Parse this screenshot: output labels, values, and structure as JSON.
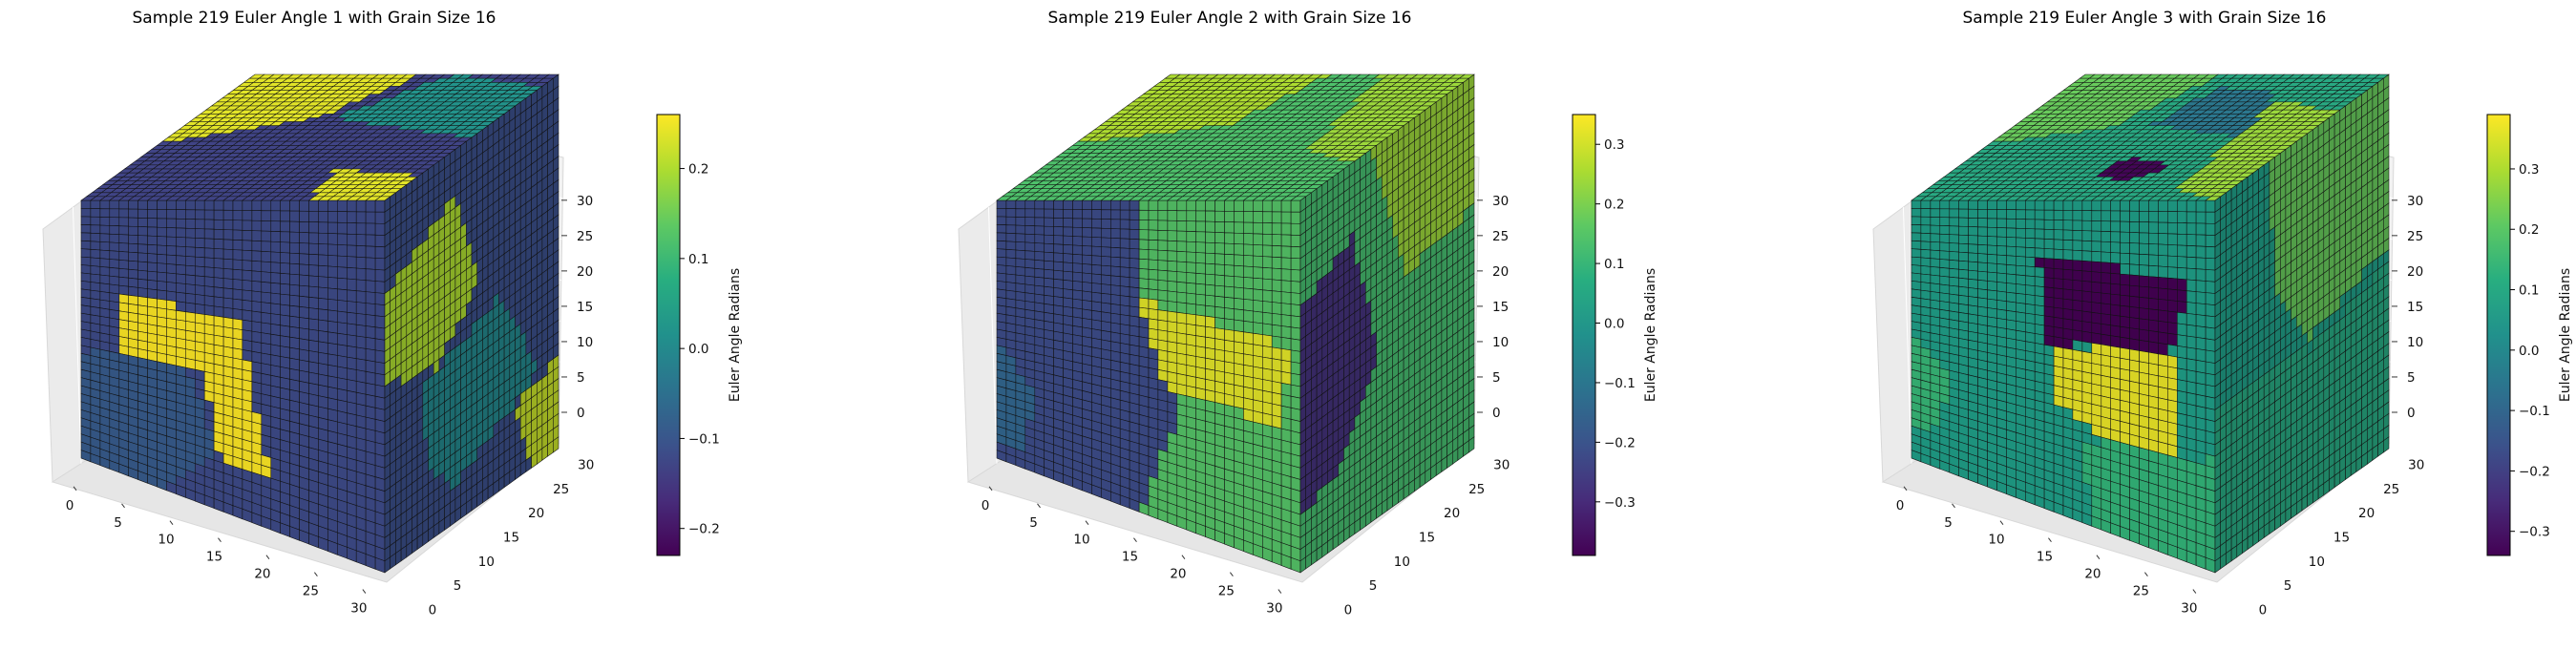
{
  "chart_data": [
    {
      "type": "voxel-3d",
      "title": "Sample 219 Euler Angle 1 with Grain Size 16",
      "xticks": [
        "0",
        "5",
        "10",
        "15",
        "20",
        "25",
        "30"
      ],
      "yticks": [
        "0",
        "5",
        "10",
        "15",
        "20",
        "25",
        "30"
      ],
      "zticks": [
        "0",
        "5",
        "10",
        "15",
        "20",
        "25",
        "30"
      ],
      "xlim": [
        0,
        32
      ],
      "ylim": [
        0,
        32
      ],
      "zlim": [
        0,
        32
      ],
      "colorbar": {
        "label": "Euler Angle Radians",
        "range": [
          -0.23,
          0.26
        ],
        "ticks": [
          "0.2",
          "0.1",
          "0.0",
          "−0.1",
          "−0.2"
        ],
        "tick_values": [
          0.2,
          0.1,
          0.0,
          -0.1,
          -0.2
        ]
      },
      "colormap": "viridis",
      "regions": {
        "front": [
          {
            "poly": [
              [
                0,
                0.58
              ],
              [
                0.35,
                0.56
              ],
              [
                0.45,
                0.82
              ],
              [
                0.25,
                1
              ],
              [
                0,
                1
              ]
            ],
            "value": -0.09
          },
          {
            "poly": [
              [
                0.12,
                0.34
              ],
              [
                0.52,
                0.38
              ],
              [
                0.62,
                0.84
              ],
              [
                0.46,
                0.86
              ],
              [
                0.4,
                0.56
              ],
              [
                0.12,
                0.56
              ]
            ],
            "value": 0.26
          },
          {
            "poly": [
              [
                0.55,
                0.84
              ],
              [
                1,
                0.78
              ],
              [
                1,
                1
              ],
              [
                0.7,
                1
              ]
            ],
            "value": -0.12
          }
        ],
        "side": [
          {
            "poly": [
              [
                0,
                0.25
              ],
              [
                0.4,
                0.12
              ],
              [
                0.55,
                0.4
              ],
              [
                0.3,
                0.55
              ],
              [
                0,
                0.5
              ]
            ],
            "value": 0.2
          },
          {
            "poly": [
              [
                0.2,
                0.58
              ],
              [
                0.65,
                0.48
              ],
              [
                0.9,
                0.75
              ],
              [
                0.4,
                0.9
              ],
              [
                0.25,
                0.8
              ]
            ],
            "value": 0.0
          },
          {
            "poly": [
              [
                0.75,
                0.8
              ],
              [
                1,
                0.75
              ],
              [
                1,
                1
              ],
              [
                0.85,
                1
              ]
            ],
            "value": 0.22
          }
        ],
        "top": [
          {
            "poly": [
              [
                0,
                0.55
              ],
              [
                0.4,
                0.35
              ],
              [
                0.55,
                0
              ],
              [
                0,
                0
              ]
            ],
            "value": 0.24
          },
          {
            "poly": [
              [
                0.45,
                0.35
              ],
              [
                1,
                0.5
              ],
              [
                1,
                0.1
              ],
              [
                0.65,
                0
              ]
            ],
            "value": 0.02
          },
          {
            "poly": [
              [
                0.7,
                0.75
              ],
              [
                1,
                0.8
              ],
              [
                1,
                1
              ],
              [
                0.75,
                1
              ]
            ],
            "value": 0.24
          }
        ]
      },
      "base_values": {
        "front": -0.12,
        "side": -0.11,
        "top": -0.13
      }
    },
    {
      "type": "voxel-3d",
      "title": "Sample 219 Euler Angle 2 with Grain Size 16",
      "xticks": [
        "0",
        "5",
        "10",
        "15",
        "20",
        "25",
        "30"
      ],
      "yticks": [
        "0",
        "5",
        "10",
        "15",
        "20",
        "25",
        "30"
      ],
      "zticks": [
        "0",
        "5",
        "10",
        "15",
        "20",
        "25",
        "30"
      ],
      "xlim": [
        0,
        32
      ],
      "ylim": [
        0,
        32
      ],
      "zlim": [
        0,
        32
      ],
      "colorbar": {
        "label": "Euler Angle Radians",
        "range": [
          -0.39,
          0.35
        ],
        "ticks": [
          "0.3",
          "0.2",
          "0.1",
          "0.0",
          "−0.1",
          "−0.2",
          "−0.3"
        ],
        "tick_values": [
          0.3,
          0.2,
          0.1,
          0.0,
          -0.1,
          -0.2,
          -0.3
        ]
      },
      "colormap": "viridis",
      "regions": {
        "front": [
          {
            "poly": [
              [
                0.47,
                0
              ],
              [
                1,
                0
              ],
              [
                1,
                1
              ],
              [
                0.47,
                1
              ],
              [
                0.6,
                0.65
              ],
              [
                0.47,
                0.3
              ]
            ],
            "value": 0.15
          },
          {
            "poly": [
              [
                0.47,
                0.32
              ],
              [
                0.98,
                0.4
              ],
              [
                0.92,
                0.62
              ],
              [
                0.55,
                0.58
              ]
            ],
            "value": 0.32
          },
          {
            "poly": [
              [
                0,
                0.55
              ],
              [
                0.12,
                0.7
              ],
              [
                0.1,
                0.92
              ],
              [
                0,
                0.95
              ]
            ],
            "value": -0.15
          }
        ],
        "side": [
          {
            "poly": [
              [
                0,
                0.3
              ],
              [
                0.3,
                0.2
              ],
              [
                0.45,
                0.55
              ],
              [
                0.2,
                0.8
              ],
              [
                0,
                0.85
              ]
            ],
            "value": -0.28
          },
          {
            "poly": [
              [
                0.4,
                0
              ],
              [
                1,
                0
              ],
              [
                1,
                0.35
              ],
              [
                0.6,
                0.4
              ]
            ],
            "value": 0.24
          }
        ],
        "top": [
          {
            "poly": [
              [
                0,
                0.55
              ],
              [
                0.42,
                0.4
              ],
              [
                0.52,
                0
              ],
              [
                0,
                0
              ]
            ],
            "value": 0.26
          },
          {
            "poly": [
              [
                0.7,
                0
              ],
              [
                1,
                0
              ],
              [
                1,
                0.7
              ],
              [
                0.8,
                0.6
              ]
            ],
            "value": 0.24
          }
        ]
      },
      "base_values": {
        "front": -0.22,
        "side": 0.13,
        "top": 0.14
      }
    },
    {
      "type": "voxel-3d",
      "title": "Sample 219 Euler Angle 3 with Grain Size 16",
      "xticks": [
        "0",
        "5",
        "10",
        "15",
        "20",
        "25",
        "30"
      ],
      "yticks": [
        "0",
        "5",
        "10",
        "15",
        "20",
        "25",
        "30"
      ],
      "zticks": [
        "0",
        "5",
        "10",
        "15",
        "20",
        "25",
        "30"
      ],
      "xlim": [
        0,
        32
      ],
      "ylim": [
        0,
        32
      ],
      "zlim": [
        0,
        32
      ],
      "colorbar": {
        "label": "Euler Angle Radians",
        "range": [
          -0.34,
          0.39
        ],
        "ticks": [
          "0.3",
          "0.2",
          "0.1",
          "0.0",
          "−0.1",
          "−0.2",
          "−0.3"
        ],
        "tick_values": [
          0.3,
          0.2,
          0.1,
          0.0,
          -0.1,
          -0.2,
          -0.3
        ]
      },
      "colormap": "viridis",
      "regions": {
        "front": [
          {
            "poly": [
              [
                0.42,
                0.18
              ],
              [
                0.9,
                0.22
              ],
              [
                0.88,
                0.42
              ],
              [
                0.44,
                0.46
              ]
            ],
            "value": -0.34
          },
          {
            "poly": [
              [
                0.46,
                0.46
              ],
              [
                0.88,
                0.44
              ],
              [
                0.86,
                0.72
              ],
              [
                0.62,
                0.72
              ],
              [
                0.48,
                0.65
              ]
            ],
            "value": 0.37
          },
          {
            "poly": [
              [
                0,
                0.52
              ],
              [
                0.12,
                0.62
              ],
              [
                0.1,
                0.85
              ],
              [
                0,
                0.88
              ]
            ],
            "value": 0.15
          },
          {
            "poly": [
              [
                0.55,
                0.74
              ],
              [
                1,
                0.7
              ],
              [
                1,
                1
              ],
              [
                0.6,
                1
              ]
            ],
            "value": 0.14
          }
        ],
        "side": [
          {
            "poly": [
              [
                0.3,
                0
              ],
              [
                1,
                0
              ],
              [
                1,
                0.45
              ],
              [
                0.55,
                0.55
              ],
              [
                0.35,
                0.35
              ]
            ],
            "value": 0.22
          },
          {
            "poly": [
              [
                0,
                0.55
              ],
              [
                0.55,
                0.58
              ],
              [
                1,
                0.5
              ],
              [
                1,
                1
              ],
              [
                0,
                1
              ]
            ],
            "value": 0.1
          }
        ],
        "top": [
          {
            "poly": [
              [
                0,
                0.55
              ],
              [
                0.32,
                0.42
              ],
              [
                0.45,
                0
              ],
              [
                0,
                0
              ]
            ],
            "value": 0.22
          },
          {
            "poly": [
              [
                0.45,
                0.4
              ],
              [
                0.8,
                0.5
              ],
              [
                0.72,
                0.15
              ],
              [
                0.5,
                0.1
              ]
            ],
            "value": -0.05
          },
          {
            "poly": [
              [
                0.52,
                0.65
              ],
              [
                0.7,
                0.72
              ],
              [
                0.62,
                0.85
              ],
              [
                0.5,
                0.8
              ]
            ],
            "value": -0.33
          },
          {
            "poly": [
              [
                0.75,
                0.2
              ],
              [
                1,
                0.3
              ],
              [
                1,
                1
              ],
              [
                0.82,
                0.9
              ]
            ],
            "value": 0.28
          }
        ]
      },
      "base_values": {
        "front": 0.07,
        "side": 0.07,
        "top": 0.1
      }
    }
  ]
}
